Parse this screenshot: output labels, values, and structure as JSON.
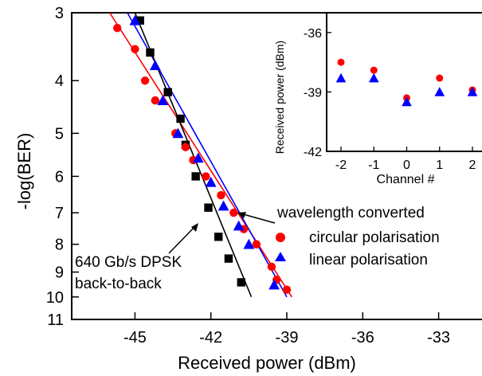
{
  "chart_data": [
    {
      "type": "scatter",
      "title": "",
      "xlabel": "Received power (dBm)",
      "ylabel": "-log(BER)",
      "xlim": [
        -47.5,
        -30.5
      ],
      "ylim": [
        3,
        11
      ],
      "y_scale": "log(-log(BER))",
      "x_ticks": [
        -45,
        -42,
        -39,
        -36,
        -33
      ],
      "y_ticks": [
        3,
        4,
        5,
        6,
        7,
        8,
        9,
        10,
        11
      ],
      "legend": {
        "position": "right",
        "title": "wavelength converted",
        "entries": [
          "circular polarisation",
          "linear polarisation"
        ]
      },
      "series": [
        {
          "name": "circular polarisation",
          "marker": "circle",
          "color": "#ff0000",
          "points": [
            [
              -45.7,
              3.2
            ],
            [
              -45.0,
              3.5
            ],
            [
              -44.6,
              4.0
            ],
            [
              -44.2,
              4.35
            ],
            [
              -43.4,
              5.0
            ],
            [
              -43.0,
              5.3
            ],
            [
              -42.7,
              5.6
            ],
            [
              -42.2,
              6.0
            ],
            [
              -41.6,
              6.5
            ],
            [
              -41.1,
              7.0
            ],
            [
              -40.7,
              7.5
            ],
            [
              -40.2,
              8.0
            ],
            [
              -39.6,
              8.8
            ],
            [
              -39.4,
              9.3
            ],
            [
              -39.0,
              9.7
            ]
          ]
        },
        {
          "name": "linear polarisation",
          "marker": "triangle",
          "color": "#0000ff",
          "points": [
            [
              -45.0,
              3.1
            ],
            [
              -44.2,
              3.75
            ],
            [
              -43.9,
              4.35
            ],
            [
              -43.3,
              5.0
            ],
            [
              -42.5,
              5.55
            ],
            [
              -42.0,
              6.15
            ],
            [
              -41.5,
              6.8
            ],
            [
              -40.9,
              7.4
            ],
            [
              -40.5,
              8.0
            ],
            [
              -39.5,
              9.5
            ]
          ]
        },
        {
          "name": "640 Gb/s DPSK back-to-back",
          "marker": "square",
          "color": "#000000",
          "points": [
            [
              -44.8,
              3.1
            ],
            [
              -44.4,
              3.55
            ],
            [
              -43.7,
              4.2
            ],
            [
              -43.2,
              4.7
            ],
            [
              -43.0,
              5.25
            ],
            [
              -42.6,
              6.0
            ],
            [
              -42.1,
              6.85
            ],
            [
              -41.7,
              7.75
            ],
            [
              -41.3,
              8.5
            ],
            [
              -40.8,
              9.4
            ]
          ]
        }
      ],
      "fit_lines": [
        {
          "color": "#ff0000",
          "from": [
            -46.0,
            3.0
          ],
          "to": [
            -38.8,
            10.0
          ]
        },
        {
          "color": "#0000ff",
          "from": [
            -45.3,
            3.0
          ],
          "to": [
            -39.0,
            10.0
          ]
        },
        {
          "color": "#000000",
          "from": [
            -45.0,
            3.0
          ],
          "to": [
            -40.4,
            10.0
          ]
        }
      ],
      "annotations": [
        {
          "text": "wavelength converted"
        },
        {
          "text": "640 Gb/s DPSK"
        },
        {
          "text": "back-to-back"
        }
      ]
    },
    {
      "type": "scatter",
      "title": "",
      "xlabel": "Channel #",
      "ylabel": "Received power (dBm)",
      "xlim": [
        -2.8,
        2.8
      ],
      "ylim": [
        -42,
        -35
      ],
      "x_ticks": [
        -2,
        -1,
        0,
        1,
        2
      ],
      "y_ticks": [
        -36,
        -39,
        -42
      ],
      "series": [
        {
          "name": "circular polarisation",
          "marker": "circle",
          "color": "#ff0000",
          "points": [
            [
              -2,
              -37.5
            ],
            [
              -1,
              -37.9
            ],
            [
              0,
              -39.3
            ],
            [
              1,
              -38.3
            ],
            [
              2,
              -38.9
            ]
          ]
        },
        {
          "name": "linear polarisation",
          "marker": "triangle",
          "color": "#0000ff",
          "points": [
            [
              -2,
              -38.3
            ],
            [
              -1,
              -38.3
            ],
            [
              0,
              -39.5
            ],
            [
              1,
              -39.0
            ],
            [
              2,
              -39.0
            ]
          ]
        }
      ]
    }
  ]
}
